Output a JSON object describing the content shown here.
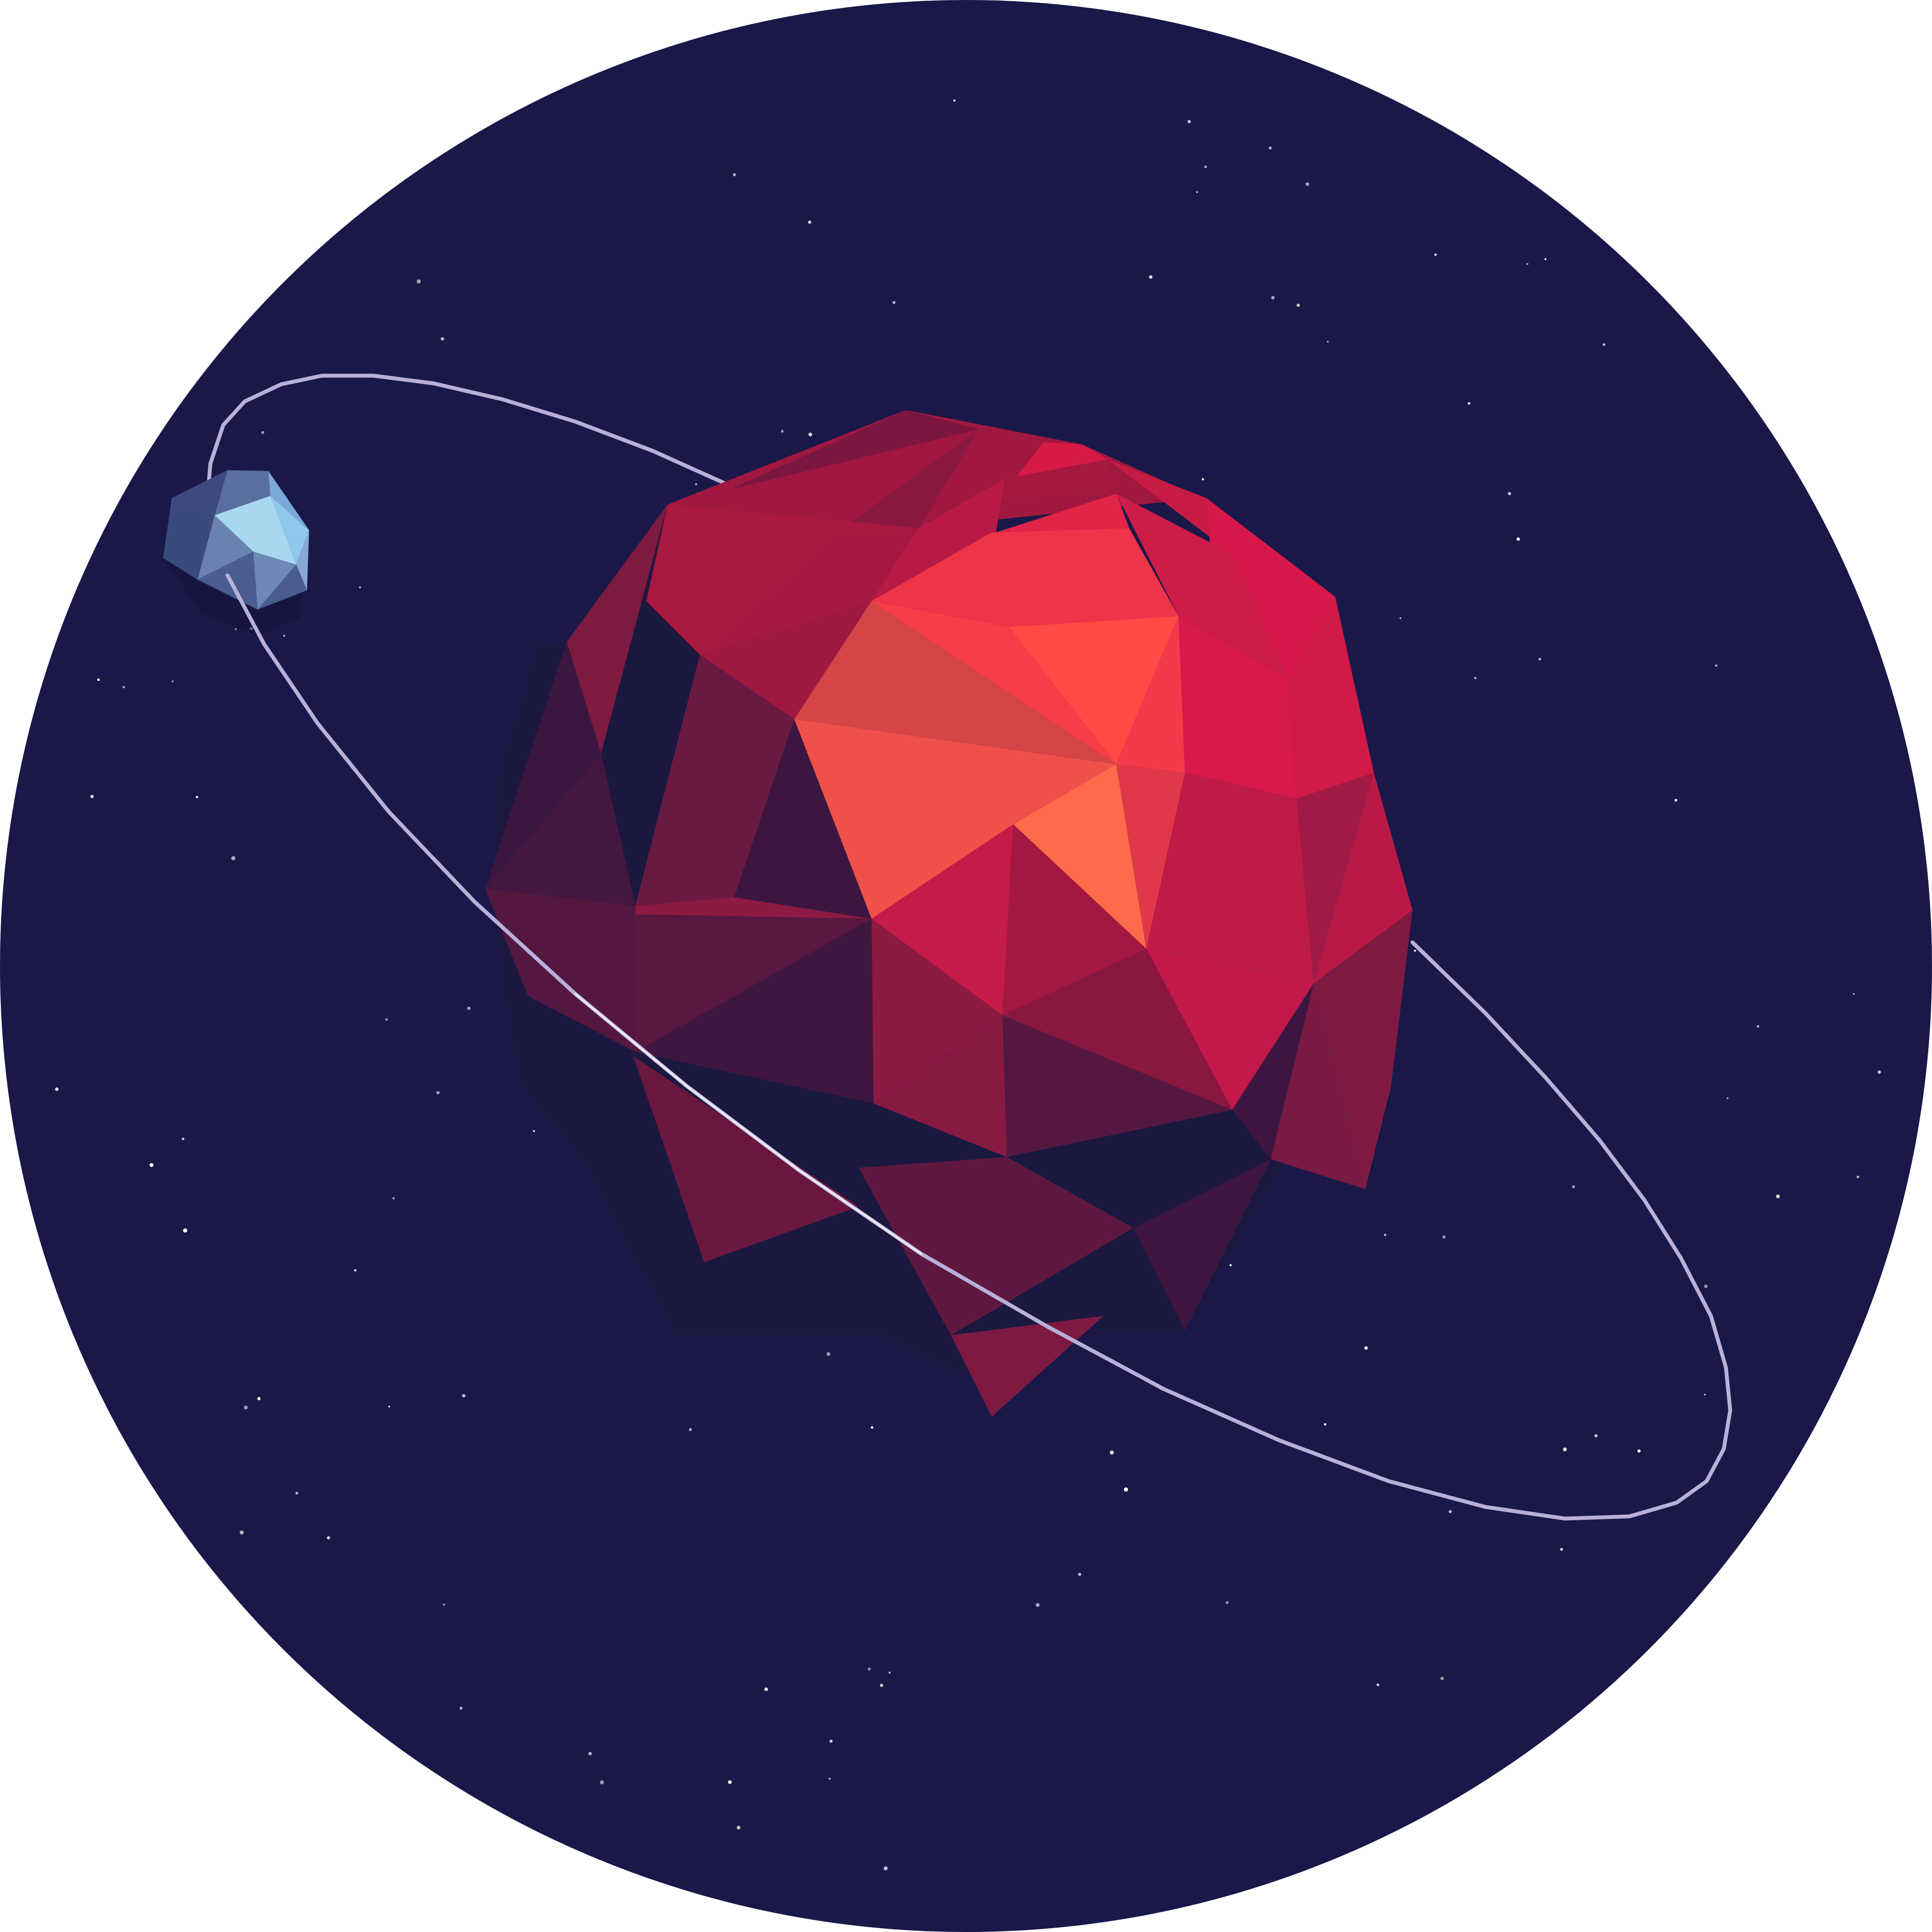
{
  "colors": {
    "space": "#191849",
    "star": "#ffffff",
    "orbit": "#b9b0d8",
    "planet_light": "#ff6a4a",
    "planet_mid": "#c41a45",
    "planet_dark": "#3c1640",
    "planet_shadow": "#1b1840",
    "moon_light": "#a8d8f0",
    "moon_dark": "#3a4a7a"
  },
  "icons": {
    "planet": "red-lowpoly-planet-icon",
    "moon": "blue-lowpoly-moon-icon",
    "orbit": "orbit-ring-icon"
  }
}
